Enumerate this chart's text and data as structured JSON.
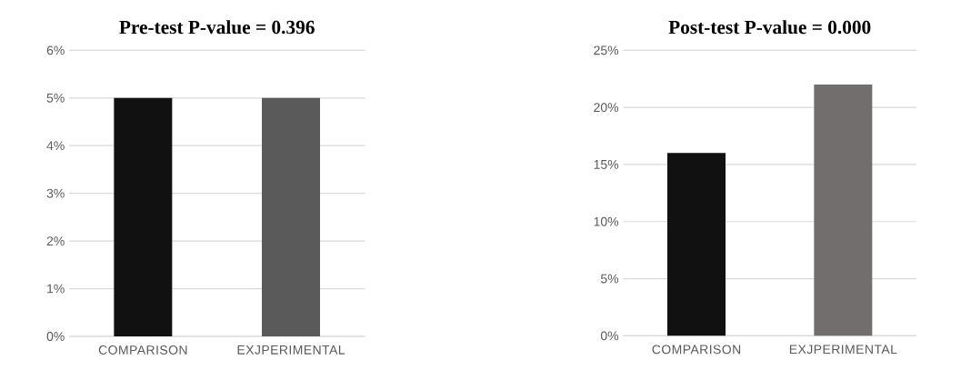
{
  "chart_data": [
    {
      "type": "bar",
      "title": "Pre-test P-value = 0.396",
      "categories": [
        "COMPARISON",
        "EXJPERIMENTAL"
      ],
      "values": [
        5,
        5
      ],
      "colors": [
        "#111111",
        "#5a5a5a"
      ],
      "ylim": [
        0,
        6
      ],
      "yticks": [
        {
          "value": 0,
          "label": "0%"
        },
        {
          "value": 1,
          "label": "1%"
        },
        {
          "value": 2,
          "label": "2%"
        },
        {
          "value": 3,
          "label": "3%"
        },
        {
          "value": 4,
          "label": "4%"
        },
        {
          "value": 5,
          "label": "5%"
        },
        {
          "value": 6,
          "label": "6%"
        }
      ],
      "grid": "y"
    },
    {
      "type": "bar",
      "title": "Post-test P-value = 0.000",
      "categories": [
        "COMPARISON",
        "EXJPERIMENTAL"
      ],
      "values": [
        16,
        22
      ],
      "colors": [
        "#111111",
        "#726e6d"
      ],
      "ylim": [
        0,
        25
      ],
      "yticks": [
        {
          "value": 0,
          "label": "0%"
        },
        {
          "value": 5,
          "label": "5%"
        },
        {
          "value": 10,
          "label": "10%"
        },
        {
          "value": 15,
          "label": "15%"
        },
        {
          "value": 20,
          "label": "20%"
        },
        {
          "value": 25,
          "label": "25%"
        }
      ],
      "grid": "y"
    }
  ]
}
